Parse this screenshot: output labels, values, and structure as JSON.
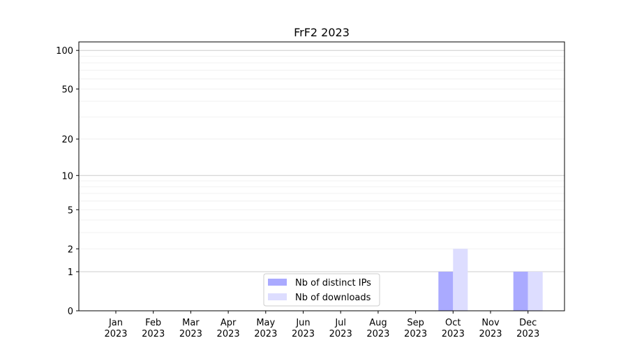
{
  "chart_data": {
    "type": "bar",
    "title": "FrF2 2023",
    "xlabel": "",
    "ylabel": "",
    "yscale": "symlog (log of 1+y)",
    "ylim": [
      0,
      116
    ],
    "yticks": [
      0,
      1,
      2,
      5,
      10,
      20,
      50,
      100
    ],
    "ytick_labels": [
      "0",
      "1",
      "2",
      "5",
      "10",
      "20",
      "50",
      "100"
    ],
    "grid": true,
    "legend_position": "lower-center",
    "categories": [
      "Jan\n2023",
      "Feb\n2023",
      "Mar\n2023",
      "Apr\n2023",
      "May\n2023",
      "Jun\n2023",
      "Jul\n2023",
      "Aug\n2023",
      "Sep\n2023",
      "Oct\n2023",
      "Nov\n2023",
      "Dec\n2023"
    ],
    "series": [
      {
        "name": "Nb of distinct IPs",
        "color": "#aaaaff",
        "values": [
          0,
          0,
          0,
          0,
          0,
          0,
          0,
          0,
          0,
          1,
          0,
          1
        ]
      },
      {
        "name": "Nb of downloads",
        "color": "#ddddff",
        "values": [
          0,
          0,
          0,
          0,
          0,
          0,
          0,
          0,
          0,
          2,
          0,
          1
        ]
      }
    ]
  }
}
